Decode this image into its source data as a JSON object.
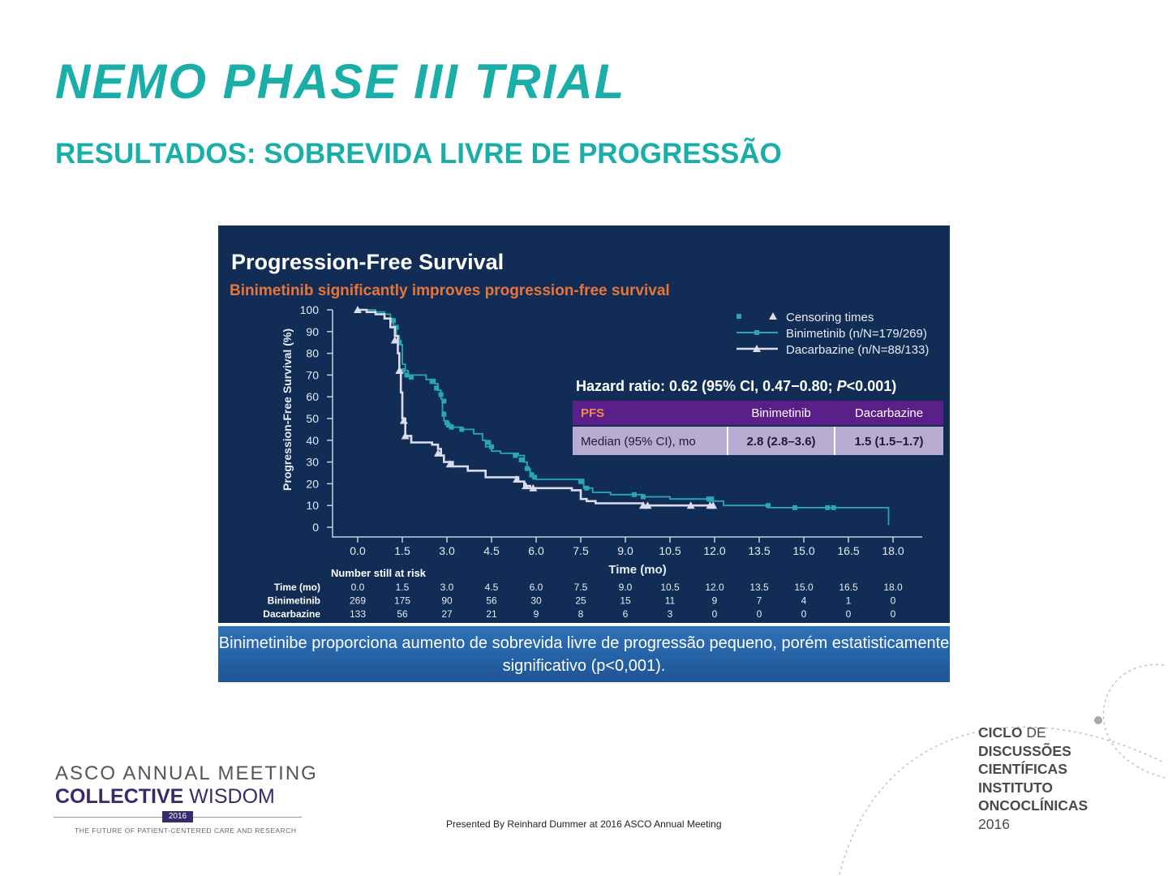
{
  "slide": {
    "title": "NEMO PHASE III TRIAL",
    "subtitle": "RESULTADOS: SOBREVIDA LIVRE DE PROGRESSÃO",
    "callout": "Binimetinibe  proporciona aumento de sobrevida livre de progressão pequeno, porém estatisticamente significativo (p<0,001).",
    "presented_by": "Presented By Reinhard Dummer at 2016 ASCO Annual Meeting"
  },
  "asco_logo": {
    "line1": "ASCO ANNUAL MEETING",
    "line2_a": "COLLECTIVE",
    "line2_b": "WISDOM",
    "year": "2016",
    "tagline": "THE FUTURE OF PATIENT-CENTERED CARE AND RESEARCH"
  },
  "ciclo_logo": {
    "l1_bold": "CICLO",
    "l1_rest": "DE",
    "l2": "DISCUSSÕES",
    "l3": "CIENTÍFICAS",
    "l4": "INSTITUTO",
    "l5": "ONCOCLÍNICAS",
    "l6": "2016"
  },
  "chart_data": {
    "type": "line",
    "title": "Progression-Free Survival",
    "subtitle": "Binimetinib significantly improves progression-free survival",
    "xlabel": "Time (mo)",
    "ylabel": "Progression-Free Survival (%)",
    "xlim": [
      0,
      18
    ],
    "ylim": [
      0,
      100
    ],
    "xticks": [
      0,
      1.5,
      3,
      4.5,
      6,
      7.5,
      9,
      10.5,
      12,
      13.5,
      15,
      16.5,
      18
    ],
    "xtick_labels": [
      "0.0",
      "1.5",
      "3.0",
      "4.5",
      "6.0",
      "7.5",
      "9.0",
      "10.5",
      "12.0",
      "13.5",
      "15.0",
      "16.5",
      "18.0"
    ],
    "yticks": [
      0,
      10,
      20,
      30,
      40,
      50,
      60,
      70,
      80,
      90,
      100
    ],
    "grid": false,
    "legend": {
      "position": "top-right",
      "censoring_label": "Censoring times",
      "entries": [
        "Binimetinib (n/N=179/269)",
        "Dacarbazine (n/N=88/133)"
      ]
    },
    "series": [
      {
        "name": "Binimetinib (n/N=179/269)",
        "color": "#2aa6b4",
        "marker": "square",
        "steps": [
          [
            0,
            100
          ],
          [
            0.3,
            100
          ],
          [
            0.6,
            99
          ],
          [
            0.9,
            98
          ],
          [
            1.1,
            96
          ],
          [
            1.2,
            92
          ],
          [
            1.3,
            88
          ],
          [
            1.4,
            84
          ],
          [
            1.5,
            75
          ],
          [
            1.6,
            72
          ],
          [
            1.7,
            70
          ],
          [
            2.3,
            68
          ],
          [
            2.6,
            66
          ],
          [
            2.7,
            63
          ],
          [
            2.8,
            59
          ],
          [
            2.85,
            53
          ],
          [
            2.9,
            49
          ],
          [
            3.0,
            47
          ],
          [
            3.2,
            46
          ],
          [
            3.5,
            45
          ],
          [
            3.9,
            43
          ],
          [
            4.2,
            40
          ],
          [
            4.3,
            37
          ],
          [
            4.5,
            35
          ],
          [
            4.8,
            34
          ],
          [
            5.4,
            33
          ],
          [
            5.6,
            30
          ],
          [
            5.7,
            27
          ],
          [
            5.8,
            25
          ],
          [
            5.9,
            23
          ],
          [
            6.0,
            22
          ],
          [
            7.6,
            18
          ],
          [
            7.9,
            16
          ],
          [
            8.5,
            15
          ],
          [
            9.6,
            14
          ],
          [
            10.5,
            13
          ],
          [
            11.8,
            12
          ],
          [
            12.3,
            10
          ],
          [
            13.8,
            9
          ],
          [
            14.7,
            9
          ],
          [
            16.0,
            9
          ],
          [
            17.8,
            9
          ],
          [
            17.85,
            1
          ]
        ],
        "censored": [
          [
            1.2,
            95
          ],
          [
            1.3,
            92
          ],
          [
            1.4,
            85
          ],
          [
            1.5,
            72
          ],
          [
            1.65,
            70
          ],
          [
            1.8,
            69
          ],
          [
            2.5,
            67
          ],
          [
            2.65,
            64
          ],
          [
            2.8,
            61
          ],
          [
            2.9,
            58
          ],
          [
            2.9,
            52
          ],
          [
            3.0,
            48
          ],
          [
            3.05,
            47
          ],
          [
            3.15,
            46
          ],
          [
            3.5,
            45
          ],
          [
            4.4,
            39
          ],
          [
            4.5,
            37
          ],
          [
            5.3,
            33
          ],
          [
            5.5,
            31
          ],
          [
            5.7,
            27
          ],
          [
            5.85,
            24
          ],
          [
            5.95,
            23
          ],
          [
            7.5,
            21
          ],
          [
            7.7,
            18
          ],
          [
            9.3,
            15
          ],
          [
            9.6,
            14
          ],
          [
            11.8,
            13
          ],
          [
            11.9,
            13
          ],
          [
            13.8,
            10
          ],
          [
            14.7,
            9
          ],
          [
            15.8,
            9
          ],
          [
            16.0,
            9
          ]
        ]
      },
      {
        "name": "Dacarbazine (n/N=88/133)",
        "color": "#dcdcec",
        "marker": "triangle",
        "steps": [
          [
            0,
            100
          ],
          [
            0.3,
            99
          ],
          [
            0.6,
            98
          ],
          [
            0.9,
            96
          ],
          [
            1.1,
            92
          ],
          [
            1.25,
            88
          ],
          [
            1.35,
            80
          ],
          [
            1.4,
            72
          ],
          [
            1.45,
            62
          ],
          [
            1.5,
            50
          ],
          [
            1.6,
            42
          ],
          [
            1.8,
            39
          ],
          [
            2.5,
            38
          ],
          [
            2.7,
            36
          ],
          [
            2.8,
            33
          ],
          [
            2.9,
            30
          ],
          [
            3.2,
            28
          ],
          [
            3.7,
            26
          ],
          [
            4.3,
            23
          ],
          [
            5.4,
            21
          ],
          [
            5.6,
            19
          ],
          [
            5.8,
            18
          ],
          [
            7.2,
            17
          ],
          [
            7.5,
            13
          ],
          [
            7.7,
            12
          ],
          [
            8.0,
            11
          ],
          [
            9.6,
            10
          ],
          [
            12.0,
            10
          ]
        ],
        "censored": [
          [
            0,
            100
          ],
          [
            1.25,
            86
          ],
          [
            1.4,
            72
          ],
          [
            1.55,
            49
          ],
          [
            1.6,
            42
          ],
          [
            2.7,
            34
          ],
          [
            3.1,
            29
          ],
          [
            5.35,
            22
          ],
          [
            5.65,
            19
          ],
          [
            5.9,
            18
          ],
          [
            9.6,
            10
          ],
          [
            9.75,
            10
          ],
          [
            11.2,
            10
          ],
          [
            11.85,
            10
          ],
          [
            11.95,
            10
          ]
        ]
      }
    ],
    "hazard_ratio": {
      "text_a": "Hazard ratio: 0.62 (95% CI, 0.47−0.80; ",
      "text_p": "P",
      "text_b": "<0.001)"
    },
    "table": {
      "headers": [
        "PFS",
        "Binimetinib",
        "Dacarbazine"
      ],
      "row": [
        "Median (95% CI), mo",
        "2.8 (2.8–3.6)",
        "1.5 (1.5–1.7)"
      ]
    },
    "at_risk": {
      "title": "Number still at risk",
      "time_label": "Time (mo)",
      "times": [
        "0.0",
        "1.5",
        "3.0",
        "4.5",
        "6.0",
        "7.5",
        "9.0",
        "10.5",
        "12.0",
        "13.5",
        "15.0",
        "16.5",
        "18.0"
      ],
      "rows": [
        {
          "label": "Binimetinib",
          "values": [
            "269",
            "175",
            "90",
            "56",
            "30",
            "25",
            "15",
            "11",
            "9",
            "7",
            "4",
            "1",
            "0"
          ]
        },
        {
          "label": "Dacarbazine",
          "values": [
            "133",
            "56",
            "27",
            "21",
            "9",
            "8",
            "6",
            "3",
            "0",
            "0",
            "0",
            "0",
            "0"
          ]
        }
      ]
    }
  }
}
